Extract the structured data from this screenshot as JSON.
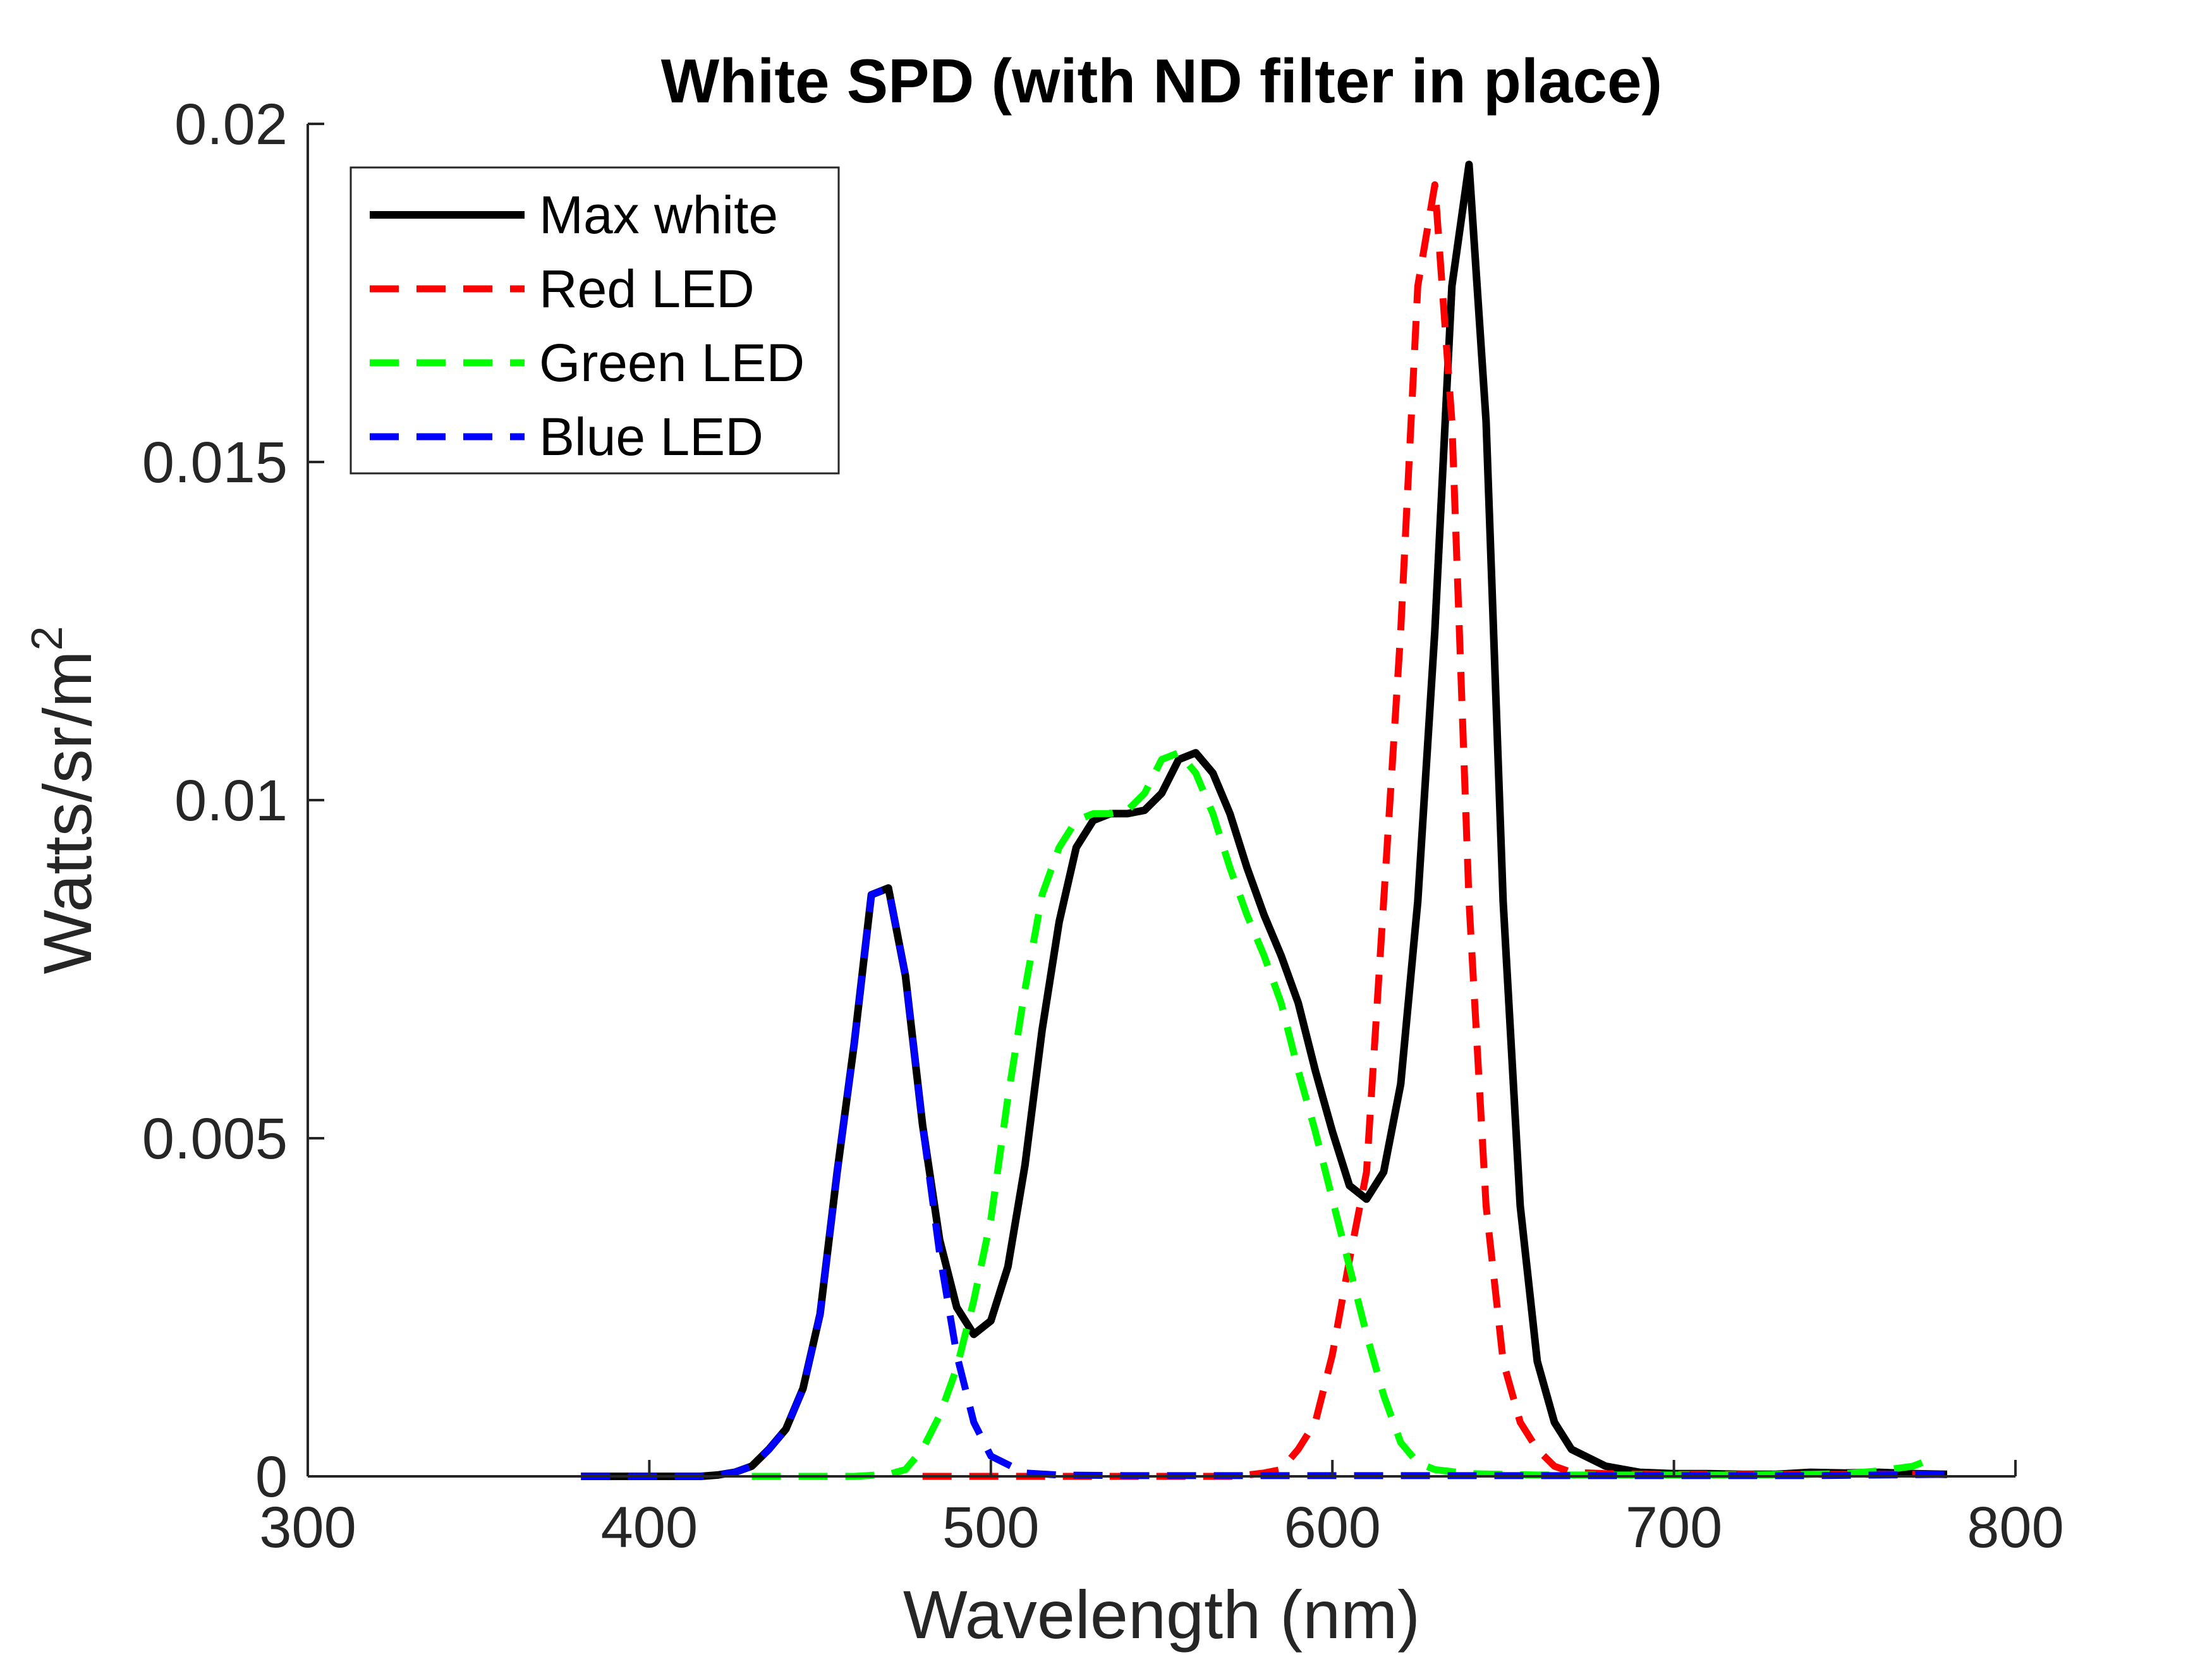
{
  "chart_data": {
    "type": "line",
    "title": "White SPD (with ND filter in place)",
    "xlabel": "Wavelength (nm)",
    "ylabel": {
      "base": "Watts/sr/m",
      "superscript": "2"
    },
    "xlim": [
      300,
      800
    ],
    "ylim": [
      0,
      0.02
    ],
    "xticks": [
      300,
      400,
      500,
      600,
      700,
      800
    ],
    "xtick_labels": [
      "300",
      "400",
      "500",
      "600",
      "700",
      "800"
    ],
    "yticks": [
      0,
      0.005,
      0.01,
      0.015,
      0.02
    ],
    "ytick_labels": [
      "0",
      "0.005",
      "0.01",
      "0.015",
      "0.02"
    ],
    "legend_position": "top-left",
    "grid": false,
    "series": [
      {
        "name": "Max white",
        "color": "#000000",
        "style": "solid",
        "x": [
          380,
          385,
          390,
          395,
          400,
          405,
          410,
          415,
          420,
          425,
          430,
          435,
          440,
          445,
          450,
          455,
          460,
          465,
          470,
          475,
          480,
          485,
          490,
          495,
          500,
          505,
          510,
          515,
          520,
          525,
          530,
          535,
          540,
          545,
          550,
          555,
          560,
          565,
          570,
          575,
          580,
          585,
          590,
          595,
          600,
          605,
          610,
          615,
          620,
          625,
          630,
          635,
          640,
          645,
          650,
          655,
          660,
          665,
          670,
          680,
          690,
          700,
          710,
          720,
          730,
          740,
          750,
          760,
          770,
          780
        ],
        "y": [
          0.0,
          0.0,
          0.0,
          0.0,
          0.0,
          0.0,
          0.0,
          0.0,
          2e-05,
          6e-05,
          0.00015,
          0.0004,
          0.0007,
          0.0013,
          0.0024,
          0.0045,
          0.0064,
          0.0086,
          0.0087,
          0.0074,
          0.0052,
          0.0035,
          0.0025,
          0.0021,
          0.0023,
          0.0031,
          0.0046,
          0.0066,
          0.0082,
          0.0093,
          0.0097,
          0.0098,
          0.0098,
          0.00985,
          0.0101,
          0.0106,
          0.0107,
          0.0104,
          0.0098,
          0.009,
          0.0083,
          0.0077,
          0.007,
          0.006,
          0.0051,
          0.0043,
          0.0041,
          0.0045,
          0.0058,
          0.0085,
          0.0125,
          0.0176,
          0.0194,
          0.0156,
          0.0085,
          0.004,
          0.0017,
          0.0008,
          0.0004,
          0.00015,
          6e-05,
          4e-05,
          4e-05,
          3e-05,
          3e-05,
          6e-05,
          5e-05,
          6e-05,
          4e-05,
          3e-05
        ]
      },
      {
        "name": "Red LED",
        "color": "#ff0000",
        "style": "dashed",
        "x": [
          480,
          500,
          520,
          540,
          560,
          570,
          575,
          580,
          585,
          590,
          595,
          600,
          605,
          610,
          615,
          620,
          625,
          630,
          635,
          640,
          645,
          650,
          655,
          660,
          665,
          670,
          680,
          700,
          720,
          740,
          760,
          780
        ],
        "y": [
          0.0,
          0.0,
          0.0,
          0.0,
          0.0,
          0.0,
          2e-05,
          5e-05,
          0.0001,
          0.0004,
          0.0008,
          0.0018,
          0.0032,
          0.0045,
          0.0085,
          0.0125,
          0.0176,
          0.0191,
          0.0156,
          0.0085,
          0.004,
          0.0017,
          0.0008,
          0.0004,
          0.00015,
          6e-05,
          4e-05,
          3e-05,
          3e-05,
          3e-05,
          3e-05,
          3e-05
        ]
      },
      {
        "name": "Green LED",
        "color": "#00ff00",
        "style": "dashed",
        "x": [
          430,
          440,
          450,
          460,
          470,
          475,
          480,
          485,
          490,
          495,
          500,
          505,
          510,
          515,
          520,
          525,
          530,
          535,
          540,
          545,
          550,
          555,
          560,
          565,
          570,
          575,
          580,
          585,
          590,
          595,
          600,
          605,
          610,
          615,
          620,
          625,
          630,
          640,
          660,
          680,
          700,
          720,
          740,
          750,
          760,
          770,
          775
        ],
        "y": [
          0.0,
          0.0,
          0.0,
          0.0,
          3e-05,
          0.0001,
          0.0004,
          0.0009,
          0.0016,
          0.0026,
          0.0038,
          0.0056,
          0.0072,
          0.0086,
          0.0093,
          0.0097,
          0.0098,
          0.0098,
          0.00985,
          0.0101,
          0.0106,
          0.0107,
          0.0104,
          0.0098,
          0.009,
          0.0083,
          0.0077,
          0.007,
          0.006,
          0.0051,
          0.0041,
          0.0031,
          0.0021,
          0.0012,
          0.0005,
          0.0002,
          0.0001,
          4e-05,
          2e-05,
          2e-05,
          2e-05,
          2e-05,
          3e-05,
          4e-05,
          8e-05,
          0.00015,
          0.00025
        ]
      },
      {
        "name": "Blue LED",
        "color": "#0000ff",
        "style": "dashed",
        "x": [
          380,
          390,
          400,
          410,
          415,
          420,
          425,
          430,
          435,
          440,
          445,
          450,
          455,
          460,
          465,
          470,
          475,
          480,
          485,
          490,
          495,
          500,
          510,
          520,
          540,
          560,
          580,
          600,
          620,
          640,
          660,
          680,
          700,
          720,
          740,
          760,
          780
        ],
        "y": [
          0.0,
          0.0,
          0.0,
          0.0,
          0.0,
          2e-05,
          6e-05,
          0.00015,
          0.0004,
          0.0007,
          0.0013,
          0.0024,
          0.0045,
          0.0064,
          0.0086,
          0.0087,
          0.0074,
          0.0052,
          0.0033,
          0.0018,
          0.0008,
          0.0003,
          5e-05,
          2e-05,
          1e-05,
          1e-05,
          1e-05,
          1e-05,
          1e-05,
          1e-05,
          1e-05,
          1e-05,
          1e-05,
          1e-05,
          1e-05,
          2e-05,
          3e-05
        ]
      }
    ]
  }
}
